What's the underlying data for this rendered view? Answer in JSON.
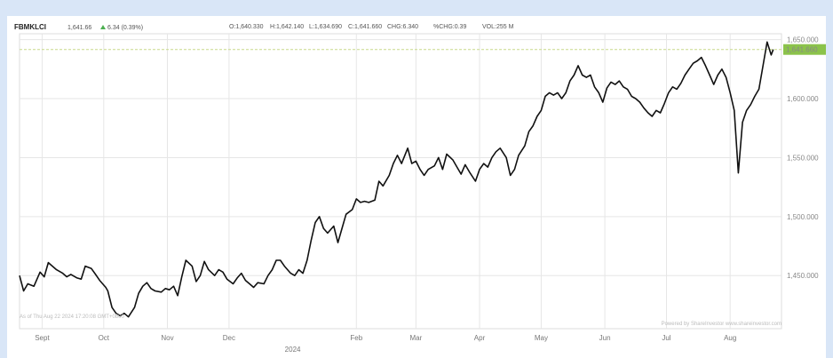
{
  "header": {
    "symbol": "FBMKLCI",
    "price": "1,641.66",
    "change": "6.34 (0.39%)",
    "open": "O:1,640.330",
    "high": "H:1,642.140",
    "low": "L:1,634.690",
    "close": "C:1,641.660",
    "chg": "CHG:6.340",
    "pct": "%CHG:0.39",
    "vol": "VOL:255 M"
  },
  "footer": {
    "as_of": "As of Thu Aug 22 2024 17:20:08 GMT+0800",
    "powered": "Powered by ShareInvestor www.shareinvestor.com"
  },
  "colors": {
    "line": "#111111",
    "grid": "#e6e6e6",
    "last_label_bg": "#8bc34a",
    "last_line": "#c8d98a",
    "up_arrow": "#4caf50"
  },
  "chart_data": {
    "type": "line",
    "title": "",
    "xlabel": "",
    "ylabel": "",
    "ylim": [
      1405,
      1655
    ],
    "yticks": [
      1450,
      1500,
      1550,
      1600,
      1650
    ],
    "ytick_labels": [
      "1,450.000",
      "1,500.000",
      "1,550.000",
      "1,600.000",
      "1,650.000"
    ],
    "last_value": 1641.66,
    "last_value_label": "1,641.660",
    "xticks": [
      {
        "label": "Sept",
        "date": "2023-09-01"
      },
      {
        "label": "Oct",
        "date": "2023-10-01"
      },
      {
        "label": "Nov",
        "date": "2023-11-01"
      },
      {
        "label": "Dec",
        "date": "2023-12-01"
      },
      {
        "label": "2024",
        "date": "2024-01-01",
        "sub": true
      },
      {
        "label": "Feb",
        "date": "2024-02-01"
      },
      {
        "label": "Mar",
        "date": "2024-03-01"
      },
      {
        "label": "Apr",
        "date": "2024-04-01"
      },
      {
        "label": "May",
        "date": "2024-05-01"
      },
      {
        "label": "Jun",
        "date": "2024-06-01"
      },
      {
        "label": "Jul",
        "date": "2024-07-01"
      },
      {
        "label": "Aug",
        "date": "2024-08-01"
      }
    ],
    "x_start": "2023-08-21",
    "x_end": "2024-08-26",
    "series": [
      {
        "points": [
          [
            "2023-08-21",
            1450
          ],
          [
            "2023-08-23",
            1437
          ],
          [
            "2023-08-25",
            1443
          ],
          [
            "2023-08-28",
            1441
          ],
          [
            "2023-08-31",
            1453
          ],
          [
            "2023-09-02",
            1449
          ],
          [
            "2023-09-04",
            1461
          ],
          [
            "2023-09-06",
            1458
          ],
          [
            "2023-09-08",
            1455
          ],
          [
            "2023-09-11",
            1452
          ],
          [
            "2023-09-13",
            1449
          ],
          [
            "2023-09-15",
            1451
          ],
          [
            "2023-09-18",
            1448
          ],
          [
            "2023-09-20",
            1447
          ],
          [
            "2023-09-22",
            1458
          ],
          [
            "2023-09-25",
            1456
          ],
          [
            "2023-09-27",
            1451
          ],
          [
            "2023-09-29",
            1446
          ],
          [
            "2023-10-02",
            1440
          ],
          [
            "2023-10-03",
            1437
          ],
          [
            "2023-10-05",
            1423
          ],
          [
            "2023-10-07",
            1418
          ],
          [
            "2023-10-09",
            1416
          ],
          [
            "2023-10-11",
            1418
          ],
          [
            "2023-10-13",
            1415
          ],
          [
            "2023-10-16",
            1423
          ],
          [
            "2023-10-18",
            1435
          ],
          [
            "2023-10-20",
            1441
          ],
          [
            "2023-10-22",
            1444
          ],
          [
            "2023-10-24",
            1439
          ],
          [
            "2023-10-26",
            1437
          ],
          [
            "2023-10-29",
            1436
          ],
          [
            "2023-10-31",
            1439
          ],
          [
            "2023-11-02",
            1438
          ],
          [
            "2023-11-04",
            1441
          ],
          [
            "2023-11-06",
            1433
          ],
          [
            "2023-11-08",
            1449
          ],
          [
            "2023-11-10",
            1463
          ],
          [
            "2023-11-13",
            1458
          ],
          [
            "2023-11-15",
            1445
          ],
          [
            "2023-11-17",
            1450
          ],
          [
            "2023-11-19",
            1462
          ],
          [
            "2023-11-21",
            1455
          ],
          [
            "2023-11-24",
            1450
          ],
          [
            "2023-11-26",
            1455
          ],
          [
            "2023-11-28",
            1453
          ],
          [
            "2023-11-30",
            1447
          ],
          [
            "2023-12-03",
            1443
          ],
          [
            "2023-12-05",
            1448
          ],
          [
            "2023-12-07",
            1452
          ],
          [
            "2023-12-09",
            1446
          ],
          [
            "2023-12-11",
            1443
          ],
          [
            "2023-12-13",
            1440
          ],
          [
            "2023-12-15",
            1444
          ],
          [
            "2023-12-18",
            1443
          ],
          [
            "2023-12-20",
            1450
          ],
          [
            "2023-12-22",
            1455
          ],
          [
            "2023-12-24",
            1463
          ],
          [
            "2023-12-26",
            1463
          ],
          [
            "2023-12-28",
            1458
          ],
          [
            "2023-12-31",
            1452
          ],
          [
            "2024-01-02",
            1450
          ],
          [
            "2024-01-04",
            1455
          ],
          [
            "2024-01-06",
            1452
          ],
          [
            "2024-01-08",
            1463
          ],
          [
            "2024-01-10",
            1480
          ],
          [
            "2024-01-12",
            1495
          ],
          [
            "2024-01-14",
            1500
          ],
          [
            "2024-01-16",
            1490
          ],
          [
            "2024-01-18",
            1486
          ],
          [
            "2024-01-21",
            1492
          ],
          [
            "2024-01-23",
            1478
          ],
          [
            "2024-01-25",
            1490
          ],
          [
            "2024-01-27",
            1502
          ],
          [
            "2024-01-30",
            1506
          ],
          [
            "2024-02-01",
            1515
          ],
          [
            "2024-02-03",
            1512
          ],
          [
            "2024-02-05",
            1513
          ],
          [
            "2024-02-07",
            1512
          ],
          [
            "2024-02-10",
            1514
          ],
          [
            "2024-02-12",
            1530
          ],
          [
            "2024-02-14",
            1526
          ],
          [
            "2024-02-17",
            1535
          ],
          [
            "2024-02-19",
            1545
          ],
          [
            "2024-02-21",
            1552
          ],
          [
            "2024-02-23",
            1545
          ],
          [
            "2024-02-26",
            1558
          ],
          [
            "2024-02-28",
            1545
          ],
          [
            "2024-03-01",
            1547
          ],
          [
            "2024-03-03",
            1540
          ],
          [
            "2024-03-05",
            1535
          ],
          [
            "2024-03-07",
            1540
          ],
          [
            "2024-03-10",
            1543
          ],
          [
            "2024-03-12",
            1550
          ],
          [
            "2024-03-14",
            1540
          ],
          [
            "2024-03-16",
            1553
          ],
          [
            "2024-03-19",
            1548
          ],
          [
            "2024-03-21",
            1542
          ],
          [
            "2024-03-23",
            1536
          ],
          [
            "2024-03-25",
            1544
          ],
          [
            "2024-03-27",
            1538
          ],
          [
            "2024-03-30",
            1530
          ],
          [
            "2024-04-01",
            1540
          ],
          [
            "2024-04-03",
            1545
          ],
          [
            "2024-04-05",
            1542
          ],
          [
            "2024-04-07",
            1550
          ],
          [
            "2024-04-09",
            1555
          ],
          [
            "2024-04-11",
            1558
          ],
          [
            "2024-04-14",
            1550
          ],
          [
            "2024-04-16",
            1535
          ],
          [
            "2024-04-18",
            1540
          ],
          [
            "2024-04-20",
            1552
          ],
          [
            "2024-04-23",
            1560
          ],
          [
            "2024-04-25",
            1572
          ],
          [
            "2024-04-27",
            1577
          ],
          [
            "2024-04-29",
            1585
          ],
          [
            "2024-05-01",
            1590
          ],
          [
            "2024-05-03",
            1602
          ],
          [
            "2024-05-05",
            1605
          ],
          [
            "2024-05-07",
            1603
          ],
          [
            "2024-05-09",
            1605
          ],
          [
            "2024-05-11",
            1600
          ],
          [
            "2024-05-13",
            1605
          ],
          [
            "2024-05-15",
            1615
          ],
          [
            "2024-05-17",
            1620
          ],
          [
            "2024-05-19",
            1628
          ],
          [
            "2024-05-21",
            1620
          ],
          [
            "2024-05-23",
            1618
          ],
          [
            "2024-05-25",
            1620
          ],
          [
            "2024-05-27",
            1610
          ],
          [
            "2024-05-29",
            1605
          ],
          [
            "2024-05-31",
            1597
          ],
          [
            "2024-06-02",
            1609
          ],
          [
            "2024-06-04",
            1614
          ],
          [
            "2024-06-06",
            1612
          ],
          [
            "2024-06-08",
            1615
          ],
          [
            "2024-06-10",
            1610
          ],
          [
            "2024-06-12",
            1608
          ],
          [
            "2024-06-14",
            1602
          ],
          [
            "2024-06-16",
            1600
          ],
          [
            "2024-06-18",
            1597
          ],
          [
            "2024-06-20",
            1592
          ],
          [
            "2024-06-22",
            1588
          ],
          [
            "2024-06-24",
            1585
          ],
          [
            "2024-06-26",
            1590
          ],
          [
            "2024-06-28",
            1588
          ],
          [
            "2024-06-30",
            1596
          ],
          [
            "2024-07-02",
            1605
          ],
          [
            "2024-07-04",
            1610
          ],
          [
            "2024-07-06",
            1608
          ],
          [
            "2024-07-08",
            1613
          ],
          [
            "2024-07-10",
            1620
          ],
          [
            "2024-07-12",
            1625
          ],
          [
            "2024-07-14",
            1630
          ],
          [
            "2024-07-16",
            1632
          ],
          [
            "2024-07-18",
            1635
          ],
          [
            "2024-07-20",
            1628
          ],
          [
            "2024-07-22",
            1620
          ],
          [
            "2024-07-24",
            1612
          ],
          [
            "2024-07-26",
            1620
          ],
          [
            "2024-07-28",
            1625
          ],
          [
            "2024-07-30",
            1618
          ],
          [
            "2024-08-01",
            1605
          ],
          [
            "2024-08-03",
            1590
          ],
          [
            "2024-08-05",
            1537
          ],
          [
            "2024-08-07",
            1580
          ],
          [
            "2024-08-09",
            1590
          ],
          [
            "2024-08-11",
            1595
          ],
          [
            "2024-08-13",
            1602
          ],
          [
            "2024-08-15",
            1608
          ],
          [
            "2024-08-17",
            1628
          ],
          [
            "2024-08-19",
            1648
          ],
          [
            "2024-08-21",
            1637
          ],
          [
            "2024-08-22",
            1641.66
          ]
        ]
      }
    ],
    "grid": true,
    "legend": "none"
  }
}
